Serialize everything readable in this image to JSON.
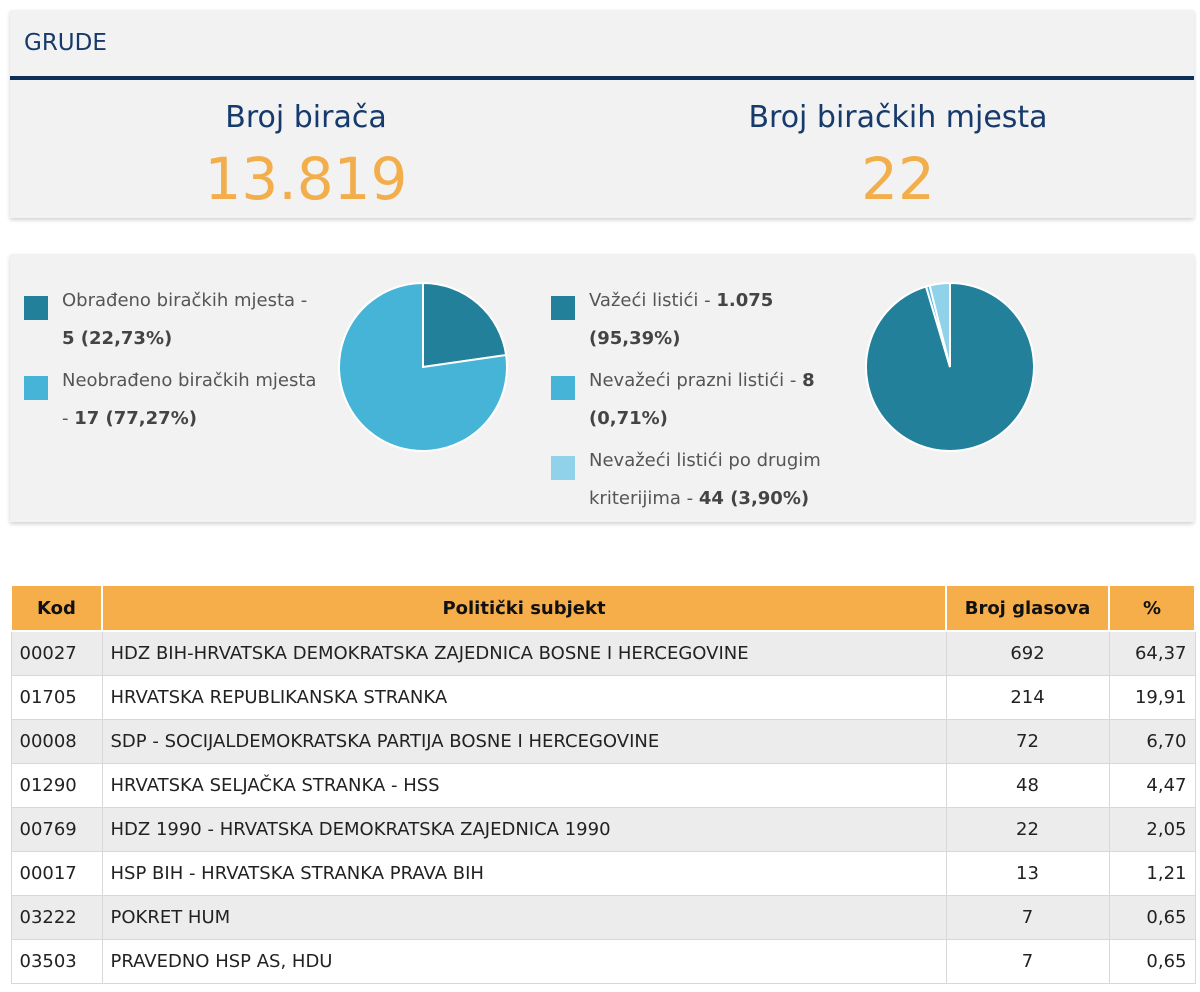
{
  "municipality": "GRUDE",
  "stats": {
    "voters_label": "Broj birača",
    "voters_value": "13.819",
    "stations_label": "Broj biračkih mjesta",
    "stations_value": "22"
  },
  "stations_legend": [
    {
      "text": "Obrađeno biračkih mjesta - ",
      "value": "5 (22,73%)",
      "color": "#22809b"
    },
    {
      "text": "Neobrađeno biračkih mjesta - ",
      "value": "17 (77,27%)",
      "color": "#45b4d7"
    }
  ],
  "ballots_legend": [
    {
      "text": "Važeći listići - ",
      "value": "1.075 (95,39%)",
      "color": "#22809b"
    },
    {
      "text": "Nevažeći prazni listići - ",
      "value": "8 (0,71%)",
      "color": "#45b4d7"
    },
    {
      "text": "Nevažeći listići po drugim kriterijima - ",
      "value": "44 (3,90%)",
      "color": "#8fd2ea"
    }
  ],
  "chart_data": [
    {
      "type": "pie",
      "categories": [
        "Obrađeno biračkih mjesta",
        "Neobrađeno biračkih mjesta"
      ],
      "values": [
        22.73,
        77.27
      ],
      "colors": [
        "#22809b",
        "#45b4d7"
      ]
    },
    {
      "type": "pie",
      "categories": [
        "Važeći listići",
        "Nevažeći prazni listići",
        "Nevažeći listići po drugim kriterijima"
      ],
      "values": [
        95.39,
        0.71,
        3.9
      ],
      "colors": [
        "#22809b",
        "#45b4d7",
        "#8fd2ea"
      ]
    }
  ],
  "table": {
    "headers": [
      "Kod",
      "Politički subjekt",
      "Broj glasova",
      "%"
    ],
    "rows": [
      [
        "00027",
        "HDZ BIH-HRVATSKA DEMOKRATSKA ZAJEDNICA BOSNE I HERCEGOVINE",
        "692",
        "64,37"
      ],
      [
        "01705",
        "HRVATSKA REPUBLIKANSKA STRANKA",
        "214",
        "19,91"
      ],
      [
        "00008",
        "SDP - SOCIJALDEMOKRATSKA PARTIJA BOSNE I HERCEGOVINE",
        "72",
        "6,70"
      ],
      [
        "01290",
        "HRVATSKA SELJAČKA STRANKA - HSS",
        "48",
        "4,47"
      ],
      [
        "00769",
        "HDZ 1990 - HRVATSKA DEMOKRATSKA ZAJEDNICA 1990",
        "22",
        "2,05"
      ],
      [
        "00017",
        "HSP BIH - HRVATSKA STRANKA PRAVA BIH",
        "13",
        "1,21"
      ],
      [
        "03222",
        "POKRET HUM",
        "7",
        "0,65"
      ],
      [
        "03503",
        "PRAVEDNO HSP AS, HDU",
        "7",
        "0,65"
      ]
    ]
  }
}
